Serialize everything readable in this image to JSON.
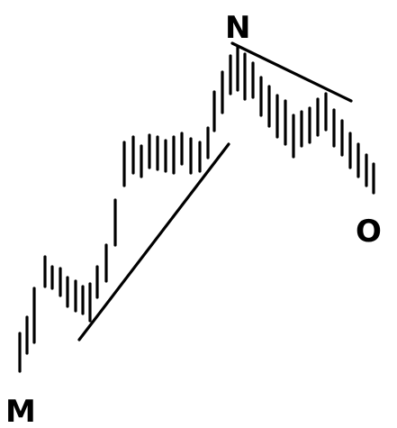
{
  "labels": {
    "start": "M",
    "peak": "N",
    "end": "O"
  },
  "colors": {
    "ink": "#000000",
    "background": "#ffffff"
  }
}
